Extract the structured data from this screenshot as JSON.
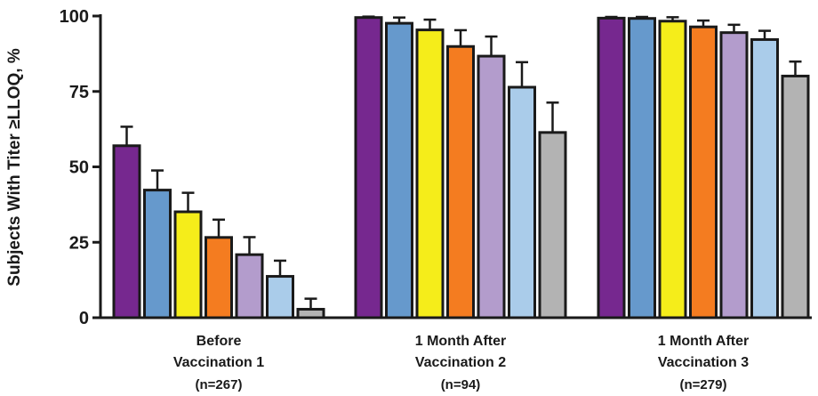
{
  "chart_data": {
    "type": "bar",
    "ylabel": "Subjects With Titer ≥LLOQ, %",
    "ylim": [
      0,
      100
    ],
    "yticks": [
      0,
      25,
      50,
      75,
      100
    ],
    "grid": false,
    "legend": "none",
    "error_bars": true,
    "categories": [
      {
        "lines": [
          "Before",
          "Vaccination 1",
          "(n=267)"
        ]
      },
      {
        "lines": [
          "1 Month After",
          "Vaccination 2",
          "(n=94)"
        ]
      },
      {
        "lines": [
          "1 Month After",
          "Vaccination 3",
          "(n=279)"
        ]
      }
    ],
    "series": [
      {
        "color": "#76288f",
        "values": [
          57,
          99.5,
          99.3
        ],
        "upper": [
          63.3,
          99.8,
          99.7
        ]
      },
      {
        "color": "#6699cc",
        "values": [
          42.3,
          97.6,
          99.2
        ],
        "upper": [
          48.8,
          99.5,
          99.7
        ]
      },
      {
        "color": "#f5ed1a",
        "values": [
          35.1,
          95.4,
          98.3
        ],
        "upper": [
          41.4,
          98.8,
          99.6
        ]
      },
      {
        "color": "#f47c20",
        "values": [
          26.6,
          89.9,
          96.4
        ],
        "upper": [
          32.5,
          95.3,
          98.5
        ]
      },
      {
        "color": "#b39ccc",
        "values": [
          20.9,
          86.7,
          94.5
        ],
        "upper": [
          26.7,
          93.2,
          97.1
        ]
      },
      {
        "color": "#aaccea",
        "values": [
          13.7,
          76.4,
          92.2
        ],
        "upper": [
          18.9,
          84.7,
          95.1
        ]
      },
      {
        "color": "#b3b3b3",
        "values": [
          2.8,
          61.4,
          80.1
        ],
        "upper": [
          6.3,
          71.3,
          84.9
        ]
      }
    ]
  }
}
